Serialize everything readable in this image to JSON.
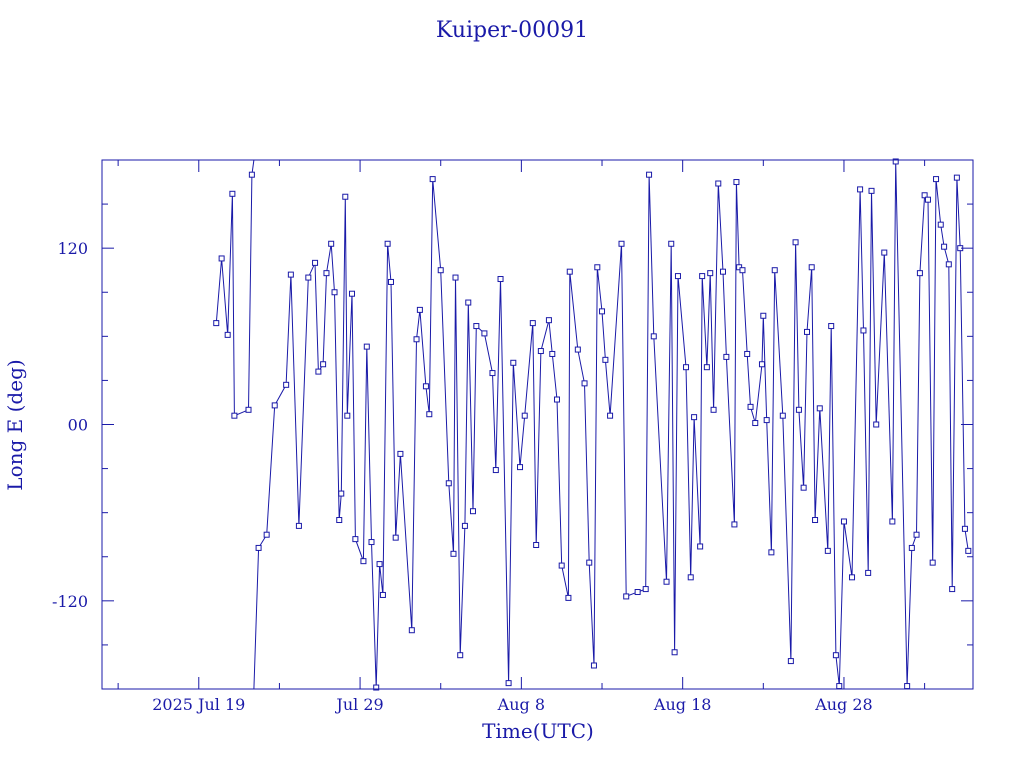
{
  "chart_data": {
    "type": "line",
    "title": "Kuiper-00091",
    "xlabel": "Time(UTC)",
    "ylabel": "Long E (deg)",
    "ylim": [
      -180,
      180
    ],
    "xlim": [
      "2025-07-13",
      "2025-09-05"
    ],
    "grid": false,
    "x_ticks": [
      {
        "date": "2025-07-19",
        "label": "2025 Jul 19"
      },
      {
        "date": "2025-07-29",
        "label": "Jul 29"
      },
      {
        "date": "2025-08-08",
        "label": "Aug  8"
      },
      {
        "date": "2025-08-18",
        "label": "Aug 18"
      },
      {
        "date": "2025-08-28",
        "label": "Aug 28"
      }
    ],
    "y_ticks": [
      {
        "value": 120,
        "label": "120"
      },
      {
        "value": 0,
        "label": "00"
      },
      {
        "value": -120,
        "label": "-120"
      }
    ],
    "series": [
      {
        "color": "#1a1aa8",
        "marker": "square",
        "points": [
          [
            "2025-07-20 02:00",
            69
          ],
          [
            "2025-07-20 10:00",
            113
          ],
          [
            "2025-07-20 19:00",
            61
          ],
          [
            "2025-07-21 02:00",
            157
          ],
          [
            "2025-07-21 05:00",
            6
          ],
          [
            "2025-07-22 02:00",
            10
          ],
          [
            "2025-07-22 07:00",
            170
          ],
          [
            "2025-07-22 10:00",
            180
          ],
          [
            "2025-07-22 10:00",
            -180
          ],
          [
            "2025-07-22 17:00",
            -84
          ],
          [
            "2025-07-23 05:00",
            -75
          ],
          [
            "2025-07-23 17:00",
            13
          ],
          [
            "2025-07-24 10:00",
            27
          ],
          [
            "2025-07-24 17:00",
            102
          ],
          [
            "2025-07-25 05:00",
            -69
          ],
          [
            "2025-07-25 19:00",
            100
          ],
          [
            "2025-07-26 05:00",
            110
          ],
          [
            "2025-07-26 10:00",
            36
          ],
          [
            "2025-07-26 17:00",
            41
          ],
          [
            "2025-07-26 22:00",
            103
          ],
          [
            "2025-07-27 05:00",
            123
          ],
          [
            "2025-07-27 10:00",
            90
          ],
          [
            "2025-07-27 17:00",
            -65
          ],
          [
            "2025-07-27 20:00",
            -47
          ],
          [
            "2025-07-28 02:00",
            155
          ],
          [
            "2025-07-28 05:00",
            6
          ],
          [
            "2025-07-28 12:00",
            89
          ],
          [
            "2025-07-28 17:00",
            -78
          ],
          [
            "2025-07-29 05:00",
            -93
          ],
          [
            "2025-07-29 10:00",
            53
          ],
          [
            "2025-07-29 17:00",
            -80
          ],
          [
            "2025-07-30 00:00",
            -179
          ],
          [
            "2025-07-30 05:00",
            -95
          ],
          [
            "2025-07-30 10:00",
            -116
          ],
          [
            "2025-07-30 17:00",
            123
          ],
          [
            "2025-07-30 22:00",
            97
          ],
          [
            "2025-07-31 05:00",
            -77
          ],
          [
            "2025-07-31 12:00",
            -20
          ],
          [
            "2025-08-01 05:00",
            -140
          ],
          [
            "2025-08-01 12:00",
            58
          ],
          [
            "2025-08-01 17:00",
            78
          ],
          [
            "2025-08-02 02:00",
            26
          ],
          [
            "2025-08-02 07:00",
            7
          ],
          [
            "2025-08-02 12:00",
            167
          ],
          [
            "2025-08-03 00:00",
            105
          ],
          [
            "2025-08-03 12:00",
            -40
          ],
          [
            "2025-08-03 19:00",
            -88
          ],
          [
            "2025-08-03 22:00",
            100
          ],
          [
            "2025-08-04 05:00",
            -157
          ],
          [
            "2025-08-04 12:00",
            -69
          ],
          [
            "2025-08-04 17:00",
            83
          ],
          [
            "2025-08-05 00:00",
            -59
          ],
          [
            "2025-08-05 05:00",
            67
          ],
          [
            "2025-08-05 17:00",
            62
          ],
          [
            "2025-08-06 05:00",
            35
          ],
          [
            "2025-08-06 10:00",
            -31
          ],
          [
            "2025-08-06 17:00",
            99
          ],
          [
            "2025-08-07 05:00",
            -176
          ],
          [
            "2025-08-07 12:00",
            42
          ],
          [
            "2025-08-07 22:00",
            -29
          ],
          [
            "2025-08-08 05:00",
            6
          ],
          [
            "2025-08-08 17:00",
            69
          ],
          [
            "2025-08-08 22:00",
            -82
          ],
          [
            "2025-08-09 05:00",
            50
          ],
          [
            "2025-08-09 17:00",
            71
          ],
          [
            "2025-08-09 22:00",
            48
          ],
          [
            "2025-08-10 05:00",
            17
          ],
          [
            "2025-08-10 12:00",
            -96
          ],
          [
            "2025-08-10 22:00",
            -118
          ],
          [
            "2025-08-11 00:00",
            104
          ],
          [
            "2025-08-11 12:00",
            51
          ],
          [
            "2025-08-11 22:00",
            28
          ],
          [
            "2025-08-12 05:00",
            -94
          ],
          [
            "2025-08-12 12:00",
            -164
          ],
          [
            "2025-08-12 17:00",
            107
          ],
          [
            "2025-08-13 00:00",
            77
          ],
          [
            "2025-08-13 05:00",
            44
          ],
          [
            "2025-08-13 12:00",
            6
          ],
          [
            "2025-08-14 05:00",
            123
          ],
          [
            "2025-08-14 12:00",
            -117
          ],
          [
            "2025-08-15 05:00",
            -114
          ],
          [
            "2025-08-15 17:00",
            -112
          ],
          [
            "2025-08-15 22:00",
            170
          ],
          [
            "2025-08-16 05:00",
            60
          ],
          [
            "2025-08-17 00:00",
            -107
          ],
          [
            "2025-08-17 07:00",
            123
          ],
          [
            "2025-08-17 12:00",
            -155
          ],
          [
            "2025-08-17 17:00",
            101
          ],
          [
            "2025-08-18 05:00",
            39
          ],
          [
            "2025-08-18 12:00",
            -104
          ],
          [
            "2025-08-18 17:00",
            5
          ],
          [
            "2025-08-19 02:00",
            -83
          ],
          [
            "2025-08-19 05:00",
            101
          ],
          [
            "2025-08-19 12:00",
            39
          ],
          [
            "2025-08-19 17:00",
            103
          ],
          [
            "2025-08-19 22:00",
            10
          ],
          [
            "2025-08-20 05:00",
            164
          ],
          [
            "2025-08-20 12:00",
            104
          ],
          [
            "2025-08-20 17:00",
            46
          ],
          [
            "2025-08-21 05:00",
            -68
          ],
          [
            "2025-08-21 08:00",
            165
          ],
          [
            "2025-08-21 12:00",
            107
          ],
          [
            "2025-08-21 17:00",
            105
          ],
          [
            "2025-08-22 00:00",
            48
          ],
          [
            "2025-08-22 05:00",
            12
          ],
          [
            "2025-08-22 12:00",
            1
          ],
          [
            "2025-08-22 22:00",
            41
          ],
          [
            "2025-08-23 00:00",
            74
          ],
          [
            "2025-08-23 05:00",
            3
          ],
          [
            "2025-08-23 12:00",
            -87
          ],
          [
            "2025-08-23 17:00",
            105
          ],
          [
            "2025-08-24 05:00",
            6
          ],
          [
            "2025-08-24 17:00",
            -161
          ],
          [
            "2025-08-25 00:00",
            124
          ],
          [
            "2025-08-25 05:00",
            10
          ],
          [
            "2025-08-25 12:00",
            -43
          ],
          [
            "2025-08-25 17:00",
            63
          ],
          [
            "2025-08-26 00:00",
            107
          ],
          [
            "2025-08-26 05:00",
            -65
          ],
          [
            "2025-08-26 12:00",
            11
          ],
          [
            "2025-08-27 00:00",
            -86
          ],
          [
            "2025-08-27 05:00",
            67
          ],
          [
            "2025-08-27 12:00",
            -157
          ],
          [
            "2025-08-27 17:00",
            -178
          ],
          [
            "2025-08-28 00:00",
            -66
          ],
          [
            "2025-08-28 12:00",
            -104
          ],
          [
            "2025-08-29 00:00",
            160
          ],
          [
            "2025-08-29 05:00",
            64
          ],
          [
            "2025-08-29 12:00",
            -101
          ],
          [
            "2025-08-29 17:00",
            159
          ],
          [
            "2025-08-30 00:00",
            0
          ],
          [
            "2025-08-30 12:00",
            117
          ],
          [
            "2025-08-31 00:00",
            -66
          ],
          [
            "2025-08-31 05:00",
            179
          ],
          [
            "2025-08-31 22:00",
            -178
          ],
          [
            "2025-09-01 05:00",
            -84
          ],
          [
            "2025-09-01 12:00",
            -75
          ],
          [
            "2025-09-01 17:00",
            103
          ],
          [
            "2025-09-02 00:00",
            156
          ],
          [
            "2025-09-02 05:00",
            153
          ],
          [
            "2025-09-02 12:00",
            -94
          ],
          [
            "2025-09-02 17:00",
            167
          ],
          [
            "2025-09-03 00:00",
            136
          ],
          [
            "2025-09-03 05:00",
            121
          ],
          [
            "2025-09-03 12:00",
            109
          ],
          [
            "2025-09-03 17:00",
            -112
          ],
          [
            "2025-09-04 00:00",
            168
          ],
          [
            "2025-09-04 05:00",
            120
          ],
          [
            "2025-09-04 12:00",
            -71
          ],
          [
            "2025-09-04 17:00",
            -86
          ]
        ]
      }
    ]
  }
}
